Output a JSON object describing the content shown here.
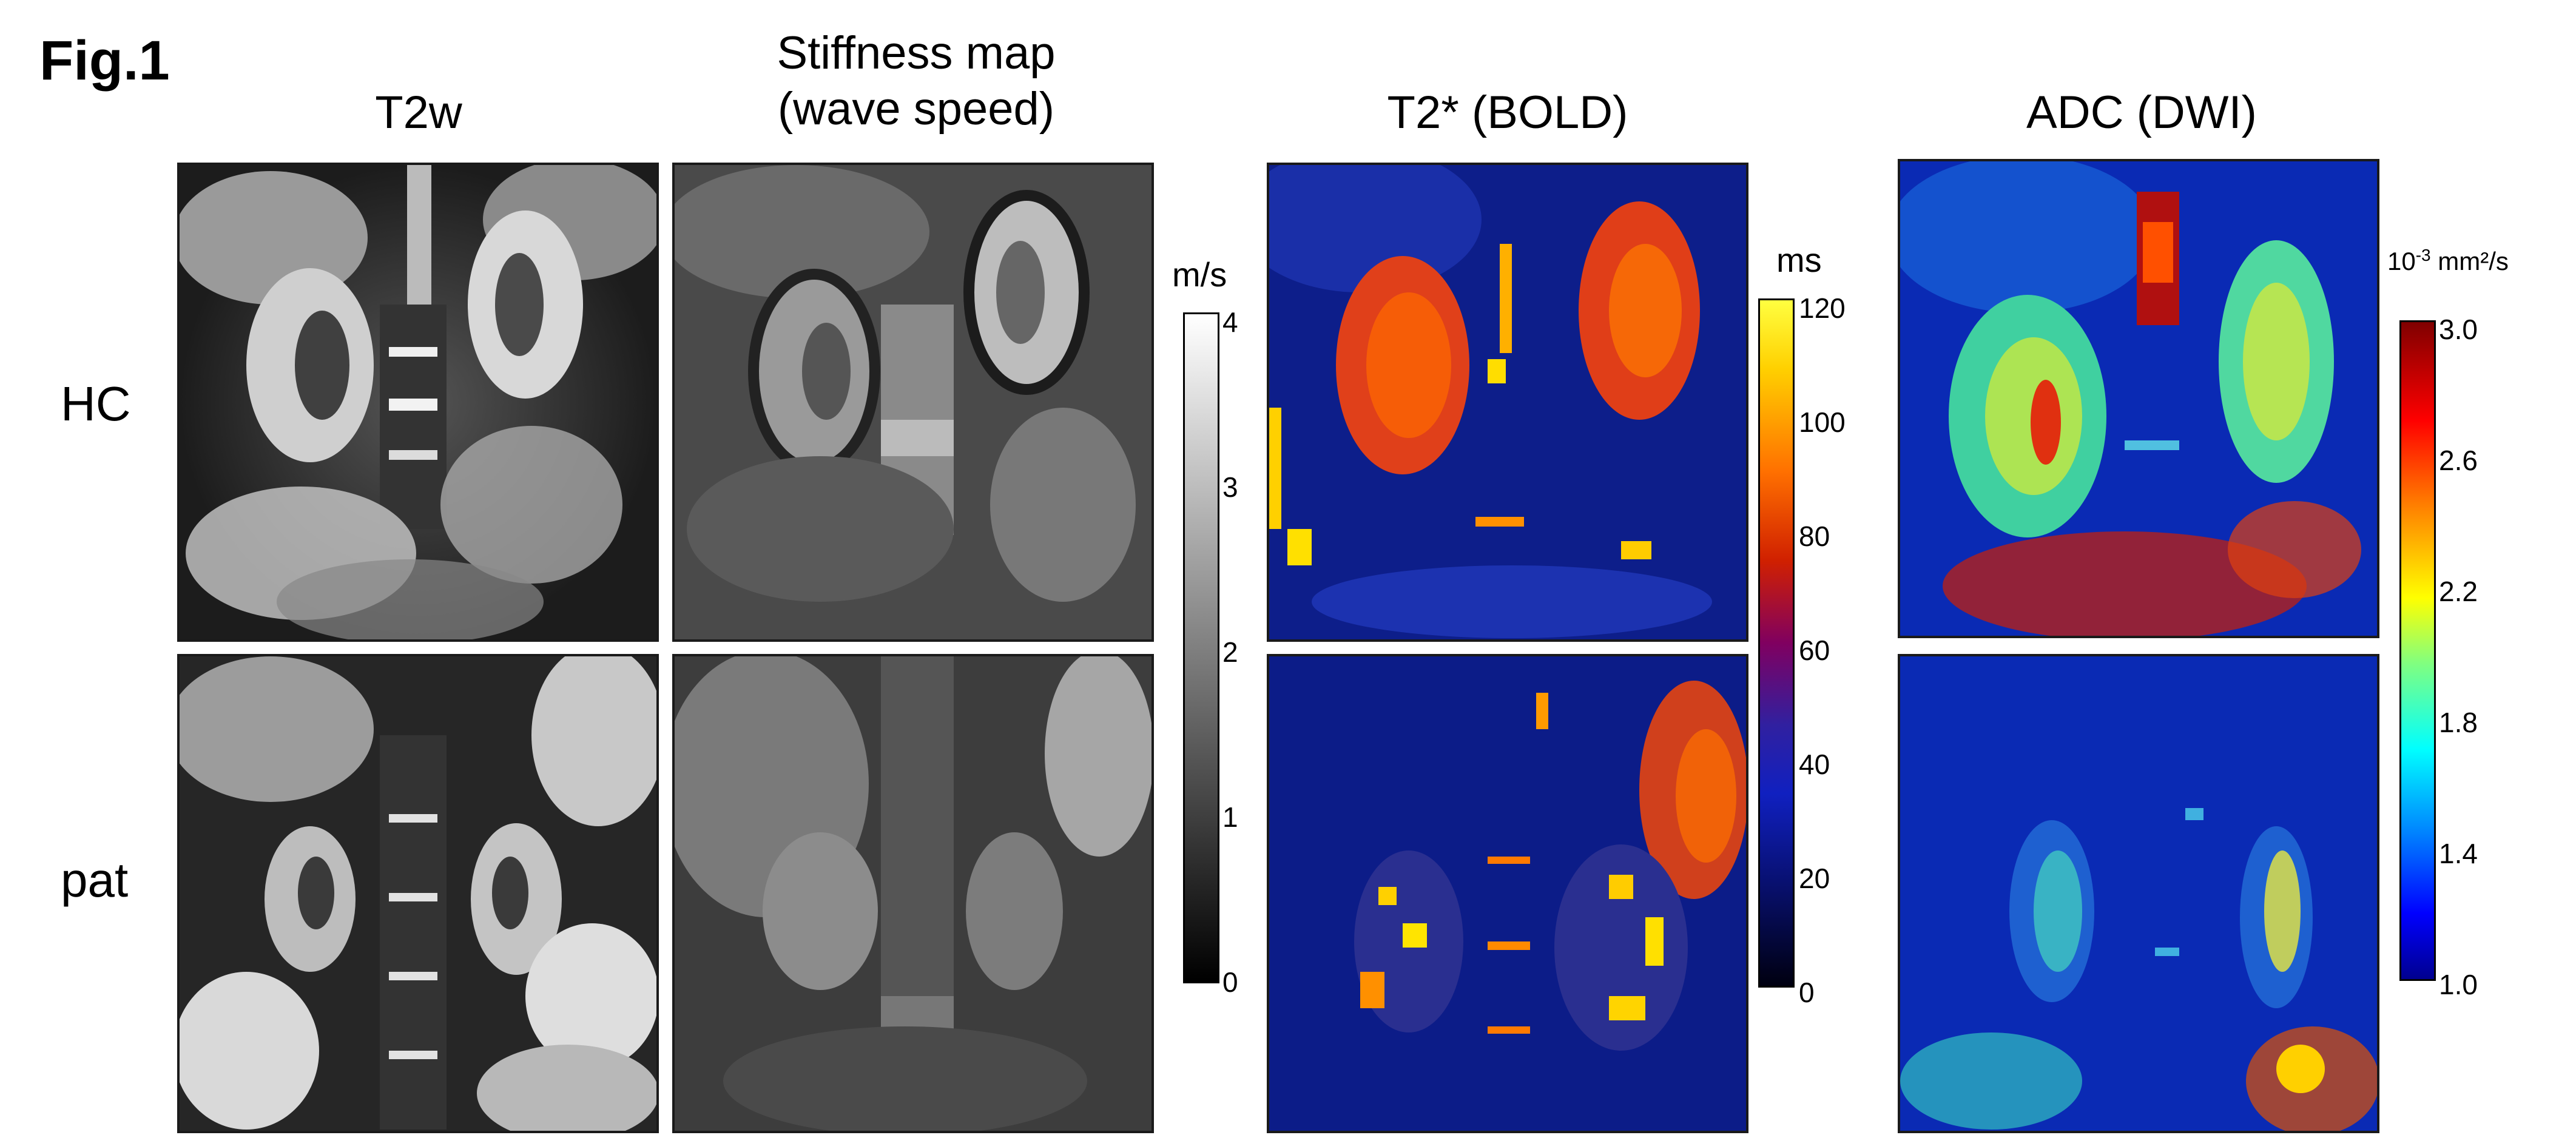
{
  "figure_label": "Fig.1",
  "columns": [
    {
      "title_line1": "T2w",
      "title_line2": ""
    },
    {
      "title_line1": "Stiffness map",
      "title_line2": "(wave speed)"
    },
    {
      "title_line1": "T2* (BOLD)",
      "title_line2": ""
    },
    {
      "title_line1": "ADC (DWI)",
      "title_line2": ""
    }
  ],
  "rows": [
    "HC",
    "pat"
  ],
  "colorbars": {
    "stiffness": {
      "unit": "m/s",
      "ticks": [
        "4",
        "3",
        "2",
        "1",
        "0"
      ],
      "range": [
        0,
        4
      ],
      "colormap": "gray"
    },
    "t2star": {
      "unit": "ms",
      "ticks": [
        "120",
        "100",
        "80",
        "60",
        "40",
        "20",
        "0"
      ],
      "range": [
        0,
        120
      ],
      "colormap": "hot-blue"
    },
    "adc": {
      "unit_prefix": "10",
      "unit_exp": "-3",
      "unit_suffix": " mm²/s",
      "ticks": [
        "3.0",
        "2.6",
        "2.2",
        "1.8",
        "1.4",
        "1.0"
      ],
      "range": [
        1.0,
        3.0
      ],
      "colormap": "jet"
    }
  }
}
